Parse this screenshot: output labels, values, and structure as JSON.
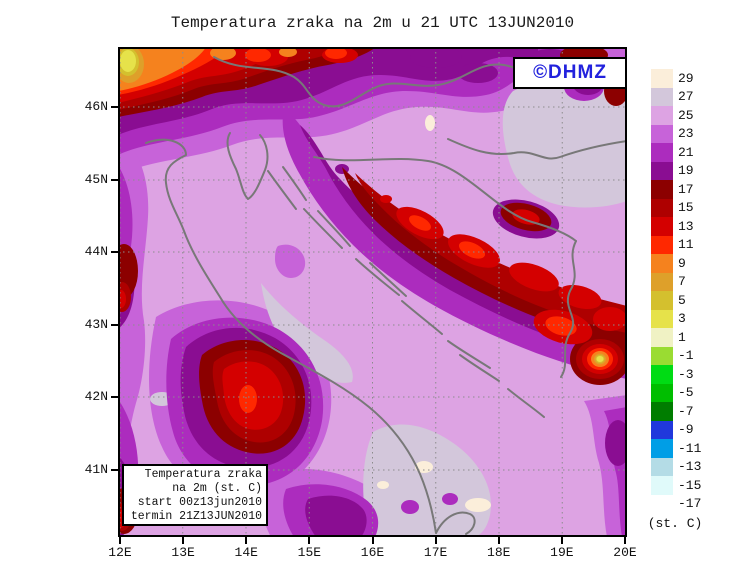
{
  "title": "Temperatura zraka na 2m u 21 UTC 13JUN2010",
  "watermark": {
    "text": "©DHMZ",
    "color": "#2222DD"
  },
  "info_box": {
    "lines": [
      "Temperatura zraka",
      "na 2m (st. C)",
      "start 00z13jun2010",
      "termin 21Z13JUN2010"
    ]
  },
  "axes": {
    "y_ticks": [
      "46N",
      "45N",
      "44N",
      "43N",
      "42N",
      "41N"
    ],
    "x_ticks": [
      "12E",
      "13E",
      "14E",
      "15E",
      "16E",
      "17E",
      "18E",
      "19E",
      "20E"
    ]
  },
  "legend": {
    "unit_label": "(st. C)",
    "entries": [
      {
        "label": "29",
        "color": "#FBEEDA"
      },
      {
        "label": "27",
        "color": "#D3C7DB"
      },
      {
        "label": "25",
        "color": "#DDA3E3"
      },
      {
        "label": "23",
        "color": "#C763D9"
      },
      {
        "label": "21",
        "color": "#AC2CBE"
      },
      {
        "label": "19",
        "color": "#8A0D92"
      },
      {
        "label": "17",
        "color": "#8C0000"
      },
      {
        "label": "15",
        "color": "#AE0000"
      },
      {
        "label": "13",
        "color": "#D40000"
      },
      {
        "label": "11",
        "color": "#FF2800"
      },
      {
        "label": "9",
        "color": "#F5821E"
      },
      {
        "label": "7",
        "color": "#DEA02A"
      },
      {
        "label": "5",
        "color": "#D4C02E"
      },
      {
        "label": "3",
        "color": "#E6E24A"
      },
      {
        "label": "1",
        "color": "#F0F2C4"
      },
      {
        "label": "-1",
        "color": "#9ADC32"
      },
      {
        "label": "-3",
        "color": "#00DC14"
      },
      {
        "label": "-5",
        "color": "#00BE00"
      },
      {
        "label": "-7",
        "color": "#007D00"
      },
      {
        "label": "-9",
        "color": "#2038DC"
      },
      {
        "label": "-11",
        "color": "#009EE6"
      },
      {
        "label": "-13",
        "color": "#B4DCE6"
      },
      {
        "label": "-15",
        "color": "#E0FAFA"
      },
      {
        "label": "-17",
        "color": "#FFFFFF"
      }
    ]
  },
  "map": {
    "coastline_color": "#787878",
    "grid_color": "#8C8C8C"
  }
}
